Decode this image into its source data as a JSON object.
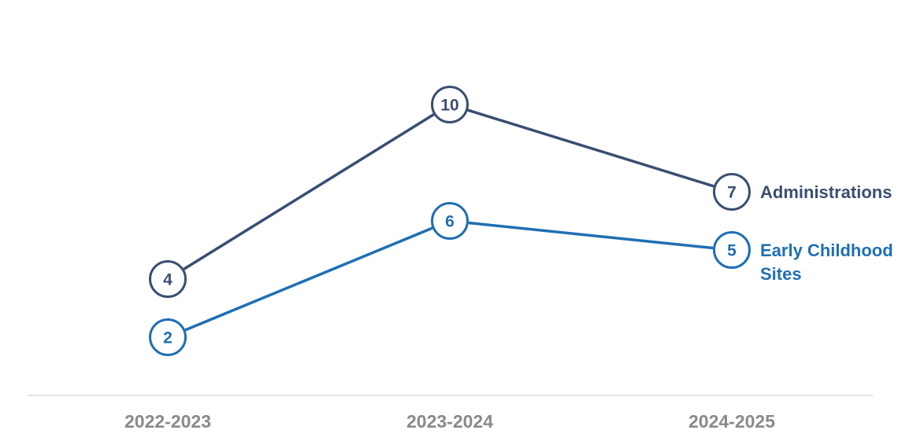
{
  "chart_data": {
    "type": "line",
    "categories": [
      "2022-2023",
      "2023-2024",
      "2024-2025"
    ],
    "series": [
      {
        "name": "Administrations",
        "label_lines": [
          "Administrations"
        ],
        "values": [
          4,
          10,
          7
        ],
        "color": "#3a4e72"
      },
      {
        "name": "Early Childhood Sites",
        "label_lines": [
          "Early Childhood",
          "Sites"
        ],
        "values": [
          2,
          6,
          5
        ],
        "color": "#1f6fb3"
      }
    ],
    "title": "",
    "xlabel": "",
    "ylabel": "",
    "ylim": [
      0,
      12
    ],
    "grid": false,
    "legend": "inline-right"
  },
  "colors": {
    "axis": "#dcdcdc",
    "tick_text": "#8a8a8a",
    "background": "#ffffff"
  }
}
